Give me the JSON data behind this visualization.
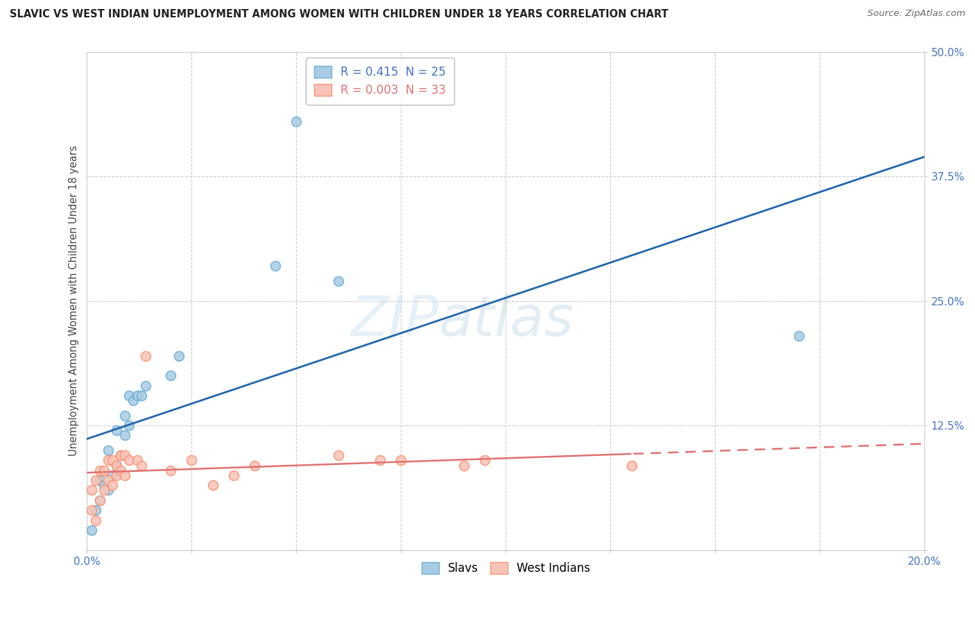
{
  "title": "SLAVIC VS WEST INDIAN UNEMPLOYMENT AMONG WOMEN WITH CHILDREN UNDER 18 YEARS CORRELATION CHART",
  "source": "Source: ZipAtlas.com",
  "ylabel": "Unemployment Among Women with Children Under 18 years",
  "xlim": [
    0.0,
    0.2
  ],
  "ylim": [
    0.0,
    0.5
  ],
  "xticks": [
    0.0,
    0.025,
    0.05,
    0.075,
    0.1,
    0.125,
    0.15,
    0.175,
    0.2
  ],
  "yticks": [
    0.0,
    0.125,
    0.25,
    0.375,
    0.5
  ],
  "ytick_labels": [
    "",
    "12.5%",
    "25.0%",
    "37.5%",
    "50.0%"
  ],
  "slavs_R": 0.415,
  "slavs_N": 25,
  "wi_R": 0.003,
  "wi_N": 33,
  "slavs_color": "#a8cce4",
  "slavs_edge_color": "#6baed6",
  "wi_color": "#f9c4b8",
  "wi_edge_color": "#fc9272",
  "slavs_line_color": "#2166ac",
  "wi_line_color": "#e07070",
  "watermark_zip": "ZIP",
  "watermark_atlas": "atlas",
  "slavs_x": [
    0.001,
    0.002,
    0.003,
    0.003,
    0.004,
    0.005,
    0.005,
    0.006,
    0.007,
    0.007,
    0.008,
    0.009,
    0.009,
    0.01,
    0.01,
    0.011,
    0.012,
    0.013,
    0.014,
    0.02,
    0.022,
    0.045,
    0.05,
    0.06,
    0.17
  ],
  "slavs_y": [
    0.02,
    0.04,
    0.05,
    0.07,
    0.065,
    0.06,
    0.1,
    0.075,
    0.085,
    0.12,
    0.095,
    0.115,
    0.135,
    0.125,
    0.155,
    0.15,
    0.155,
    0.155,
    0.165,
    0.175,
    0.195,
    0.285,
    0.43,
    0.27,
    0.215
  ],
  "wi_x": [
    0.001,
    0.001,
    0.002,
    0.002,
    0.003,
    0.003,
    0.004,
    0.004,
    0.005,
    0.005,
    0.006,
    0.006,
    0.007,
    0.007,
    0.008,
    0.008,
    0.009,
    0.009,
    0.01,
    0.012,
    0.013,
    0.014,
    0.02,
    0.025,
    0.03,
    0.035,
    0.04,
    0.06,
    0.07,
    0.075,
    0.09,
    0.095,
    0.13
  ],
  "wi_y": [
    0.04,
    0.06,
    0.03,
    0.07,
    0.05,
    0.08,
    0.06,
    0.08,
    0.07,
    0.09,
    0.065,
    0.09,
    0.075,
    0.085,
    0.08,
    0.095,
    0.075,
    0.095,
    0.09,
    0.09,
    0.085,
    0.195,
    0.08,
    0.09,
    0.065,
    0.075,
    0.085,
    0.095,
    0.09,
    0.09,
    0.085,
    0.09,
    0.085
  ],
  "background_color": "#ffffff",
  "grid_color": "#cccccc"
}
